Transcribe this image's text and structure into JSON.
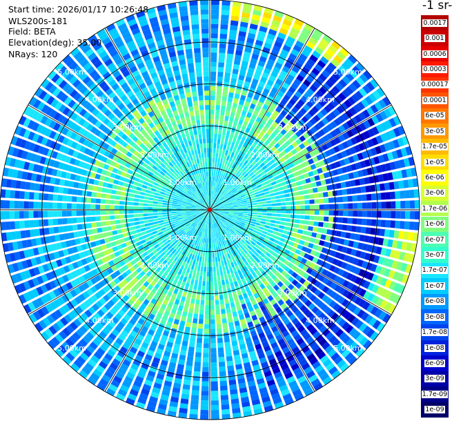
{
  "header": {
    "start_time": "Start time: 2026/01/17 10:26:48",
    "instrument": "WLS200s-181",
    "field": "Field: BETA",
    "elevation": "Elevation(deg): 35.00",
    "nrays": "NRays: 120"
  },
  "colorbar": {
    "title": "-1 sr-",
    "levels": [
      "0.0017",
      "0.001",
      "0.0006",
      "0.0003",
      "0.00017",
      "0.0001",
      "6e-05",
      "3e-05",
      "1.7e-05",
      "1e-05",
      "6e-06",
      "3e-06",
      "1.7e-06",
      "1e-06",
      "6e-07",
      "3e-07",
      "1.7e-07",
      "1e-07",
      "6e-08",
      "3e-08",
      "1.7e-08",
      "1e-08",
      "6e-09",
      "3e-09",
      "1.7e-09",
      "1e-09"
    ],
    "colors": [
      "#b30000",
      "#cc0000",
      "#e60000",
      "#ff1a00",
      "#ff3300",
      "#ff5500",
      "#ff7700",
      "#ff9900",
      "#ffbb00",
      "#ffdd00",
      "#ffff00",
      "#d9ff33",
      "#b3ff4d",
      "#80ff80",
      "#4dffb3",
      "#33ffcc",
      "#1ae6ff",
      "#00ccff",
      "#0099ff",
      "#0066ff",
      "#0044ee",
      "#0022dd",
      "#0000cc",
      "#0000a8",
      "#000088",
      "#000066"
    ]
  },
  "chart_data": {
    "type": "ppi-polar-heatmap",
    "field": "BETA",
    "elevation_deg": 35.0,
    "n_rays": 120,
    "range_rings_km": [
      1,
      2,
      3,
      4,
      5
    ],
    "ring_labels": [
      "1.00km",
      "2.00km",
      "3.00km",
      "4.00km",
      "5.00km"
    ],
    "max_range_km": 5.0,
    "spoke_step_deg": 30,
    "range_gates": 44
  }
}
